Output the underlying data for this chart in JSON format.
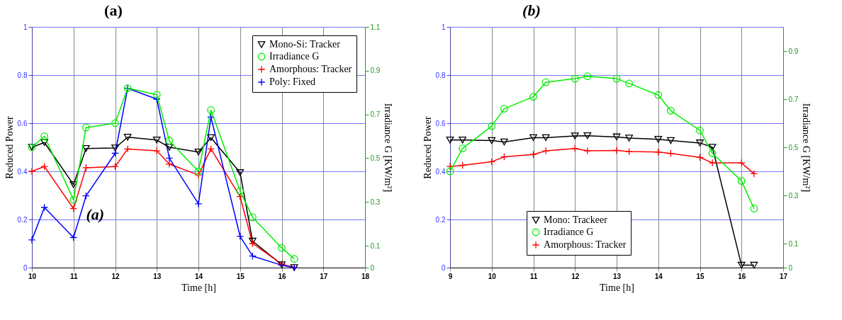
{
  "chart_data": [
    {
      "type": "line",
      "title": "(a)",
      "xlabel": "Time [h]",
      "ylabel": "Reduced Power",
      "y2label": "Irradiance G [KW/m²]",
      "xlim": [
        10,
        18
      ],
      "xticks": [
        10,
        11,
        12,
        13,
        14,
        15,
        16,
        17,
        18
      ],
      "ylim": [
        0,
        1
      ],
      "yticks": [
        0,
        0.2,
        0.4,
        0.6,
        0.8,
        1
      ],
      "y2lim": [
        0,
        1.1
      ],
      "y2ticks": [
        0,
        0.1,
        0.3,
        0.5,
        0.7,
        0.9,
        1.1
      ],
      "grid": true,
      "legend": "top right",
      "annotations": [
        "(a)"
      ],
      "x": [
        10,
        10.3,
        11,
        11.3,
        12,
        12.3,
        13,
        13.3,
        14,
        14.3,
        15,
        15.3,
        16,
        16.3
      ],
      "series": [
        {
          "name": "Mono-Si: Tracker",
          "color": "#000000",
          "marker": "triangle",
          "values": [
            0.5,
            0.52,
            0.345,
            0.495,
            0.497,
            0.542,
            0.53,
            0.5,
            0.48,
            0.54,
            0.395,
            0.11,
            0.012,
            0.0
          ]
        },
        {
          "name": "Irradiance G",
          "color": "#00ee00",
          "marker": "circle",
          "axis": "y2",
          "values": [
            0.55,
            0.6,
            0.31,
            0.64,
            0.66,
            0.82,
            0.79,
            0.58,
            0.44,
            0.72,
            0.35,
            0.23,
            0.09,
            0.04
          ]
        },
        {
          "name": "Amorphous: Tracker",
          "color": "#ff0000",
          "marker": "cross",
          "values": [
            0.4,
            0.42,
            0.245,
            0.415,
            0.42,
            0.493,
            0.485,
            0.43,
            0.385,
            0.493,
            0.295,
            0.1,
            0.015,
            0.0
          ]
        },
        {
          "name": "Poly: Fixed",
          "color": "#0000ff",
          "marker": "cross",
          "values": [
            0.115,
            0.25,
            0.125,
            0.298,
            0.475,
            0.745,
            0.7,
            0.455,
            0.265,
            0.625,
            0.13,
            0.048,
            0.01,
            0.0
          ]
        }
      ]
    },
    {
      "type": "line",
      "title": "(b)",
      "xlabel": "Time [h]",
      "ylabel": "Reduced Power",
      "y2label": "Irradiance G [KW/m²]",
      "xlim": [
        9,
        17
      ],
      "xticks": [
        9,
        10,
        11,
        12,
        13,
        14,
        15,
        16,
        17
      ],
      "ylim": [
        0,
        1
      ],
      "yticks": [
        0,
        0.2,
        0.4,
        0.6,
        0.8,
        1
      ],
      "y2lim": [
        0,
        1
      ],
      "y2ticks": [
        0,
        0.1,
        0.3,
        0.5,
        0.7,
        0.9
      ],
      "grid": true,
      "legend": "bottom",
      "x": [
        9,
        9.3,
        10,
        10.3,
        11,
        11.3,
        12,
        12.3,
        13,
        13.3,
        14,
        14.3,
        15,
        15.3,
        16,
        16.3
      ],
      "series": [
        {
          "name": "Mono: Trackeer",
          "color": "#000000",
          "marker": "triangle",
          "values": [
            0.53,
            0.53,
            0.528,
            0.522,
            0.54,
            0.54,
            0.547,
            0.548,
            0.543,
            0.538,
            0.533,
            0.528,
            0.518,
            0.5,
            0.01,
            0.01
          ]
        },
        {
          "name": "Irradiance G",
          "color": "#00ee00",
          "marker": "circle",
          "axis": "y2",
          "values": [
            0.4,
            0.495,
            0.588,
            0.66,
            0.71,
            0.77,
            0.785,
            0.795,
            0.785,
            0.765,
            0.717,
            0.652,
            0.57,
            0.475,
            0.36,
            0.245
          ]
        },
        {
          "name": "Amorphous: Tracker",
          "color": "#ff0000",
          "marker": "cross",
          "values": [
            0.42,
            0.425,
            0.44,
            0.46,
            0.47,
            0.485,
            0.495,
            0.485,
            0.487,
            0.482,
            0.48,
            0.474,
            0.458,
            0.435,
            0.435,
            0.39
          ]
        }
      ]
    }
  ]
}
